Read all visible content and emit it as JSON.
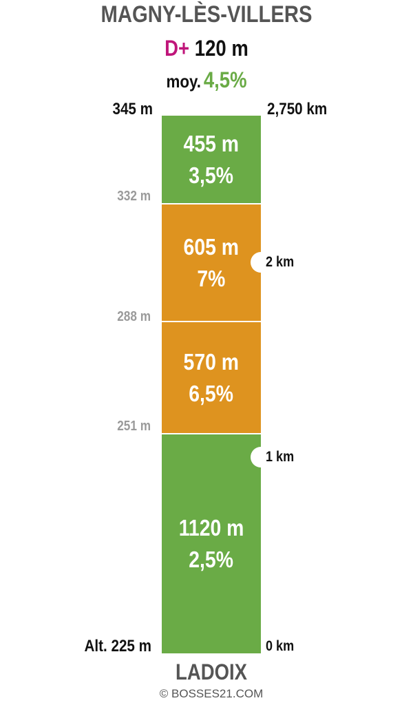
{
  "title": "MAGNY-LÈS-VILLERS",
  "climb": {
    "dplus_label": "D+",
    "dplus_value": "120 m",
    "avg_label": "moy.",
    "avg_value": "4,5%"
  },
  "altitudes": {
    "top": "345 m",
    "mid_1": "332 m",
    "mid_2": "288 m",
    "mid_3": "251 m",
    "bottom": "Alt. 225 m"
  },
  "distances": {
    "total": "2,750 km",
    "km2": "2 km",
    "km1": "1 km",
    "km0": "0 km"
  },
  "segments": [
    {
      "length": "455 m",
      "grade": "3,5%",
      "color": "#6aab46"
    },
    {
      "length": "605 m",
      "grade": "7%",
      "color": "#de931f"
    },
    {
      "length": "570 m",
      "grade": "6,5%",
      "color": "#de931f"
    },
    {
      "length": "1120 m",
      "grade": "2,5%",
      "color": "#6aab46"
    }
  ],
  "start": "LADOIX",
  "credit": "© BOSSES21.COM",
  "colors": {
    "gentle": "#6aab46",
    "steep": "#de931f",
    "dplus": "#c0157a"
  }
}
